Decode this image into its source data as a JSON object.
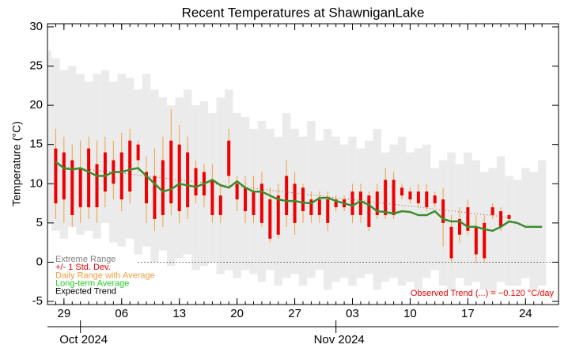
{
  "chart_data": {
    "type": "temperature-range",
    "title": "Recent Temperatures at ShawniganLake",
    "y_label": "Temperature (°C)",
    "ylim": [
      -5.4,
      30.4
    ],
    "yticks": [
      -5,
      0,
      5,
      10,
      15,
      20,
      25,
      30
    ],
    "xlim": [
      "2024-09-27",
      "2024-11-28"
    ],
    "xticks": [
      {
        "value": "2024-09-29",
        "label": "29"
      },
      {
        "value": "2024-10-06",
        "label": "06"
      },
      {
        "value": "2024-10-13",
        "label": "13"
      },
      {
        "value": "2024-10-20",
        "label": "20"
      },
      {
        "value": "2024-10-27",
        "label": "27"
      },
      {
        "value": "2024-11-03",
        "label": "03"
      },
      {
        "value": "2024-11-10",
        "label": "10"
      },
      {
        "value": "2024-11-17",
        "label": "17"
      },
      {
        "value": "2024-11-24",
        "label": "24"
      }
    ],
    "month_ticks": [
      {
        "value": "2024-10-01",
        "label": "Oct 2024"
      },
      {
        "value": "2024-11-01",
        "label": "Nov 2024"
      }
    ],
    "x": [
      "2024-09-27",
      "2024-09-28",
      "2024-09-29",
      "2024-09-30",
      "2024-10-01",
      "2024-10-02",
      "2024-10-03",
      "2024-10-04",
      "2024-10-05",
      "2024-10-06",
      "2024-10-07",
      "2024-10-08",
      "2024-10-09",
      "2024-10-10",
      "2024-10-11",
      "2024-10-12",
      "2024-10-13",
      "2024-10-14",
      "2024-10-15",
      "2024-10-16",
      "2024-10-17",
      "2024-10-18",
      "2024-10-19",
      "2024-10-20",
      "2024-10-21",
      "2024-10-22",
      "2024-10-23",
      "2024-10-24",
      "2024-10-25",
      "2024-10-26",
      "2024-10-27",
      "2024-10-28",
      "2024-10-29",
      "2024-10-30",
      "2024-10-31",
      "2024-11-01",
      "2024-11-02",
      "2024-11-03",
      "2024-11-04",
      "2024-11-05",
      "2024-11-06",
      "2024-11-07",
      "2024-11-08",
      "2024-11-09",
      "2024-11-10",
      "2024-11-11",
      "2024-11-12",
      "2024-11-13",
      "2024-11-14",
      "2024-11-15",
      "2024-11-16",
      "2024-11-17",
      "2024-11-18",
      "2024-11-19",
      "2024-11-20",
      "2024-11-21",
      "2024-11-22",
      "2024-11-23",
      "2024-11-24",
      "2024-11-25",
      "2024-11-26"
    ],
    "extreme": {
      "name": "Extreme Range",
      "color": "#ebebeb",
      "legend_color": "#808080",
      "high": [
        27,
        26,
        24.5,
        25,
        24,
        23,
        24,
        24.5,
        23,
        24,
        23.5,
        22,
        24,
        22,
        21,
        20,
        21,
        22,
        20,
        20.5,
        19,
        21,
        22,
        19,
        18.5,
        17,
        18,
        17,
        16,
        19,
        17,
        16,
        18,
        15.5,
        17,
        16,
        15,
        16,
        14.5,
        15.5,
        17,
        14,
        15,
        16,
        14,
        14.5,
        15,
        12,
        13,
        14,
        12.5,
        14,
        13,
        11.5,
        12,
        13.5,
        11,
        10.5,
        12,
        11.5,
        13
      ],
      "low": [
        5,
        4,
        3,
        4.5,
        3.5,
        4,
        3,
        5,
        2.5,
        2,
        3,
        1,
        2,
        0,
        1.5,
        -0.5,
        0.5,
        1,
        -1,
        -0.5,
        0,
        -1.5,
        -1,
        -2,
        -1,
        -1.5,
        -2.5,
        -1,
        -3,
        -2,
        -1.5,
        -3,
        -2,
        -1,
        -3.5,
        -2.5,
        -2,
        -3,
        -2,
        -1.5,
        -3.5,
        -2.5,
        -2,
        -3,
        -2.5,
        -3.5,
        -2,
        -1,
        -3,
        -3.5,
        -2,
        -3,
        -2.5,
        -3.5,
        -4,
        -2.5,
        -3,
        -3,
        -2,
        -3.5,
        -3
      ]
    },
    "std": {
      "name": "+/- 1 Std. Dev.",
      "color": "#ee0000",
      "high": [
        null,
        14.5,
        14,
        13,
        12,
        14.5,
        12.5,
        14,
        13,
        14,
        15.5,
        15,
        11.5,
        11,
        13,
        15.5,
        15,
        14,
        12,
        11.5,
        10.5,
        8.5,
        15.5,
        10,
        9.5,
        9,
        10,
        8,
        8.5,
        11,
        10,
        9.5,
        8,
        8,
        8,
        8,
        8,
        9,
        9,
        8.5,
        9,
        10.5,
        10.5,
        9.5,
        9,
        9,
        9,
        8.5,
        8,
        4.5,
        5.5,
        7,
        4.5,
        5,
        7,
        6.5,
        6,
        null,
        null,
        null,
        null
      ],
      "low": [
        null,
        7.5,
        8,
        6,
        7,
        7,
        7,
        9,
        10,
        8,
        9,
        13,
        7.5,
        5.5,
        6,
        7.5,
        6.5,
        7,
        8.5,
        8.5,
        6,
        6,
        11,
        8,
        6.5,
        6,
        5,
        3,
        3.5,
        6,
        5,
        6.5,
        6,
        6,
        5,
        7,
        7,
        6,
        6,
        4.5,
        6,
        6,
        6,
        8.5,
        8,
        7.5,
        7,
        7.5,
        5,
        0.5,
        3.5,
        4,
        1,
        0.5,
        6,
        4.5,
        5.5,
        null,
        null,
        null,
        null
      ]
    },
    "daily": {
      "name": "Daily Range with Average",
      "color": "#f0a040",
      "high": [
        null,
        17,
        16,
        15,
        15.5,
        16,
        15.5,
        16,
        15.5,
        16.5,
        17,
        15.5,
        13.5,
        14.5,
        16,
        19.5,
        17.5,
        16,
        13,
        12.5,
        12.5,
        10,
        17,
        11,
        11,
        11,
        11.5,
        9.5,
        10,
        13,
        11.5,
        10,
        9,
        9,
        9,
        8.5,
        8.5,
        10,
        10,
        9,
        10,
        12,
        11.5,
        10,
        9.5,
        10,
        10,
        9,
        9.5,
        6,
        7,
        8,
        6,
        6,
        7.5,
        7,
        6.2,
        null,
        null,
        null,
        null
      ],
      "low": [
        null,
        5.5,
        5,
        4.5,
        5,
        5.5,
        5,
        7,
        8,
        6.5,
        7.5,
        11.5,
        5,
        4,
        4.5,
        6,
        5,
        5.5,
        7.5,
        7,
        5,
        5,
        10,
        6.5,
        5,
        5,
        4.5,
        2.5,
        3,
        4.5,
        3.5,
        5,
        5,
        5,
        4,
        6.5,
        6.5,
        5,
        5,
        4,
        5.5,
        5.5,
        5.5,
        8,
        7.5,
        7,
        6.5,
        7,
        2,
        0,
        2.5,
        3.5,
        0,
        0,
        5.5,
        4,
        5,
        null,
        null,
        null,
        null
      ]
    },
    "average": {
      "name": "Long-term Average",
      "color": "#3c8c2c",
      "legend_color": "#22cc22",
      "values": [
        null,
        12.8,
        12,
        11.8,
        12,
        11.5,
        11,
        11,
        11.5,
        11.5,
        11.8,
        12,
        11,
        10,
        9,
        9.3,
        10,
        9.8,
        9.6,
        10,
        10.5,
        9.8,
        9.5,
        10.3,
        9.5,
        9,
        9,
        8.5,
        8,
        7.8,
        7.8,
        7.6,
        7.5,
        8.2,
        8.2,
        7.8,
        7.5,
        7.2,
        7.8,
        7.3,
        6.5,
        6.4,
        6.2,
        6.5,
        6.4,
        6,
        6,
        6.5,
        5.5,
        5.2,
        5.2,
        4.5,
        4.5,
        4.2,
        4,
        4.5,
        5.2,
        5,
        4.5,
        4.5,
        4.5
      ]
    },
    "expected": {
      "name": "Expected Trend",
      "color": "#000000",
      "x": [
        "2024-10-08",
        "2024-11-28"
      ],
      "values": [
        0,
        0
      ]
    },
    "observed_trend": {
      "label": "Observed Trend (...) = −0.120 °C/day",
      "color": "#ee0000",
      "line_color": "#a05030",
      "x": [
        "2024-09-28",
        "2024-11-22"
      ],
      "values": [
        12.3,
        5.7
      ]
    }
  }
}
